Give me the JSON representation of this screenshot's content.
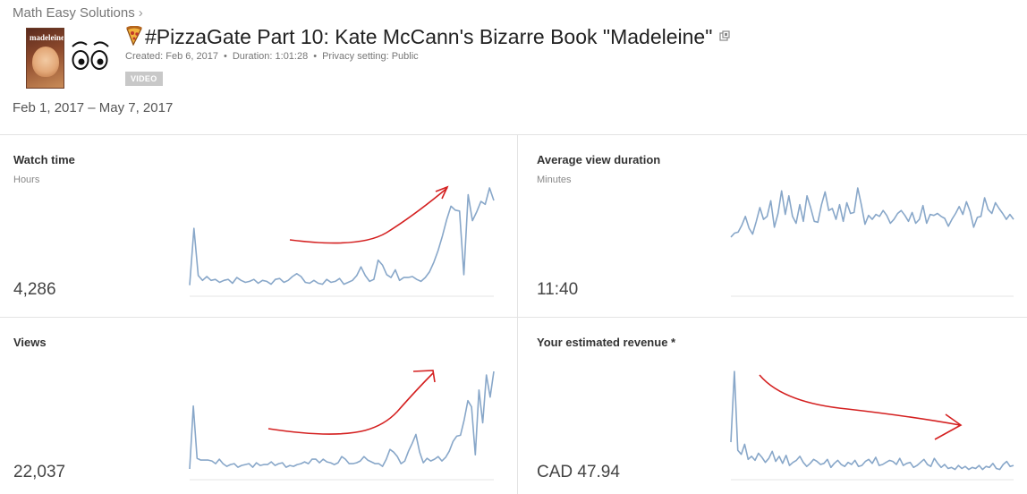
{
  "breadcrumb": {
    "channel": "Math Easy Solutions",
    "separator": "›"
  },
  "video": {
    "title": "#PizzaGate Part 10: Kate McCann's Bizarre Book \"Madeleine\"",
    "thumbnail_text": "madeleine",
    "created": "Created: Feb 6, 2017",
    "duration": "Duration: 1:01:28",
    "privacy": "Privacy setting: Public",
    "type_badge": "VIDEO",
    "dot": "•"
  },
  "date_range": "Feb 1, 2017 – May 7, 2017",
  "colors": {
    "sparkline": "#88a7c9",
    "annotation": "#d42020",
    "baseline": "#e6e6e6",
    "divider": "#e3e3e3"
  },
  "metrics": {
    "watch_time": {
      "label": "Watch time",
      "unit": "Hours",
      "value": "4,286"
    },
    "avg_view_duration": {
      "label": "Average view duration",
      "unit": "Minutes",
      "value": "11:40"
    },
    "views": {
      "label": "Views",
      "value": "22,037"
    },
    "revenue": {
      "label": "Your estimated revenue *",
      "value": "CAD 47.94"
    }
  },
  "chart_data": [
    {
      "type": "line",
      "metric": "Watch time",
      "values": [
        4,
        63,
        14,
        9,
        13,
        9,
        10,
        7,
        9,
        10,
        6,
        12,
        9,
        7,
        8,
        10,
        6,
        9,
        8,
        5,
        10,
        11,
        7,
        9,
        13,
        16,
        13,
        7,
        6,
        9,
        6,
        5,
        10,
        7,
        8,
        11,
        5,
        7,
        9,
        14,
        23,
        14,
        8,
        10,
        30,
        25,
        15,
        12,
        20,
        9,
        12,
        12,
        13,
        10,
        8,
        12,
        18,
        28,
        40,
        55,
        72,
        86,
        82,
        81,
        15,
        98,
        71,
        80,
        91,
        88,
        105,
        92
      ]
    },
    {
      "type": "line",
      "metric": "Average view duration",
      "values": [
        53,
        57,
        58,
        65,
        74,
        62,
        56,
        69,
        83,
        71,
        74,
        90,
        63,
        77,
        100,
        76,
        95,
        74,
        67,
        86,
        69,
        95,
        83,
        69,
        68,
        86,
        99,
        80,
        82,
        71,
        86,
        69,
        88,
        77,
        78,
        103,
        86,
        66,
        75,
        71,
        76,
        74,
        80,
        75,
        67,
        71,
        77,
        80,
        75,
        69,
        78,
        67,
        71,
        85,
        67,
        76,
        75,
        77,
        74,
        72,
        64,
        71,
        77,
        84,
        76,
        89,
        79,
        63,
        73,
        74,
        93,
        81,
        77,
        88,
        82,
        77,
        71,
        76,
        71
      ]
    },
    {
      "type": "line",
      "metric": "Views",
      "values": [
        4,
        75,
        16,
        14,
        14,
        14,
        13,
        10,
        15,
        10,
        7,
        9,
        10,
        6,
        8,
        9,
        10,
        6,
        11,
        8,
        9,
        9,
        12,
        8,
        10,
        11,
        6,
        8,
        7,
        9,
        10,
        12,
        10,
        15,
        15,
        11,
        15,
        12,
        11,
        9,
        11,
        18,
        15,
        10,
        10,
        11,
        13,
        18,
        14,
        12,
        10,
        10,
        7,
        15,
        26,
        23,
        18,
        10,
        13,
        24,
        33,
        43,
        23,
        11,
        16,
        13,
        15,
        18,
        13,
        17,
        24,
        35,
        41,
        42,
        59,
        81,
        74,
        20,
        93,
        56,
        110,
        85,
        114
      ]
    },
    {
      "type": "line",
      "metric": "Your estimated revenue *",
      "values": [
        30,
        100,
        22,
        18,
        28,
        13,
        16,
        12,
        19,
        15,
        10,
        14,
        21,
        11,
        16,
        9,
        17,
        7,
        10,
        12,
        16,
        10,
        6,
        9,
        13,
        11,
        8,
        9,
        13,
        5,
        9,
        12,
        8,
        6,
        10,
        8,
        12,
        6,
        7,
        11,
        13,
        9,
        15,
        7,
        8,
        10,
        12,
        11,
        8,
        14,
        7,
        9,
        10,
        5,
        7,
        10,
        13,
        8,
        6,
        14,
        9,
        5,
        8,
        4,
        5,
        3,
        7,
        4,
        6,
        3,
        5,
        4,
        7,
        3,
        6,
        5,
        9,
        4,
        3,
        8,
        11,
        6,
        7
      ]
    }
  ]
}
